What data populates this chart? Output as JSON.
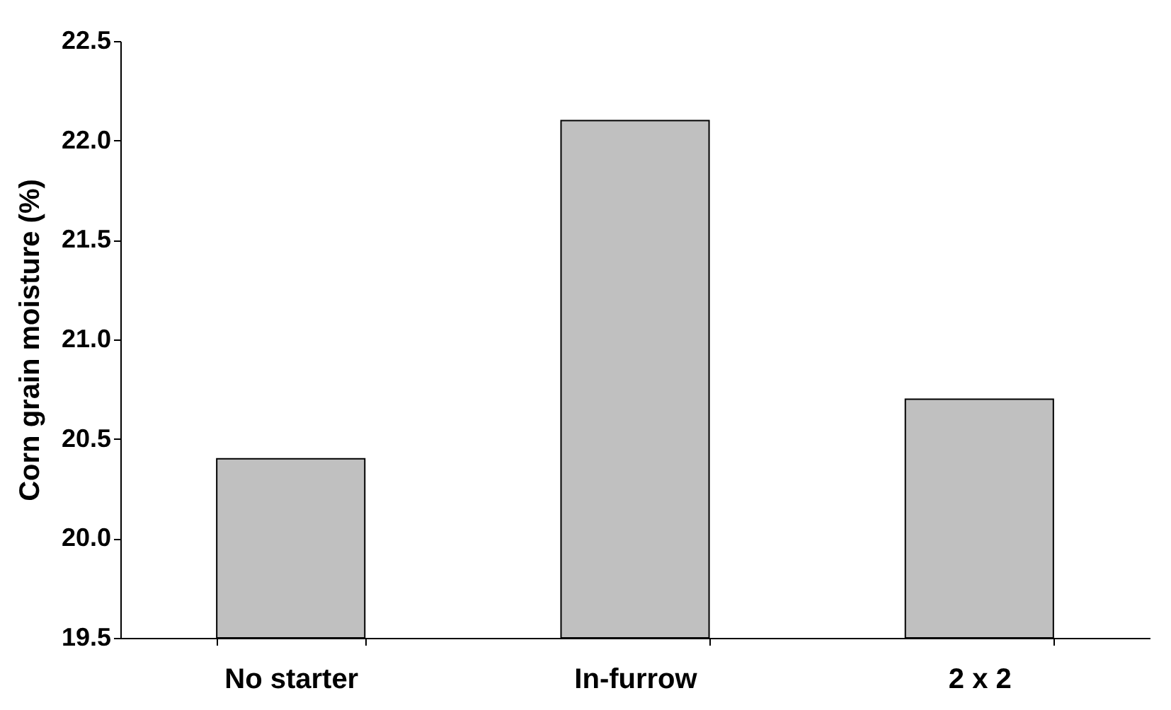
{
  "chart_data": {
    "type": "bar",
    "categories": [
      "No starter",
      "In-furrow",
      "2 x 2"
    ],
    "values": [
      20.4,
      22.1,
      20.7
    ],
    "color": "#c0c0c0",
    "ylabel": "Corn grain moisture (%)",
    "ylim": [
      19.5,
      22.5
    ],
    "yticks": [
      {
        "value": 19.5,
        "label": "19.5"
      },
      {
        "value": 20.0,
        "label": "20.0"
      },
      {
        "value": 20.5,
        "label": "20.5"
      },
      {
        "value": 21.0,
        "label": "21.0"
      },
      {
        "value": 21.5,
        "label": "21.5"
      },
      {
        "value": 22.0,
        "label": "22.0"
      },
      {
        "value": 22.5,
        "label": "22.5"
      }
    ],
    "grid": false
  }
}
